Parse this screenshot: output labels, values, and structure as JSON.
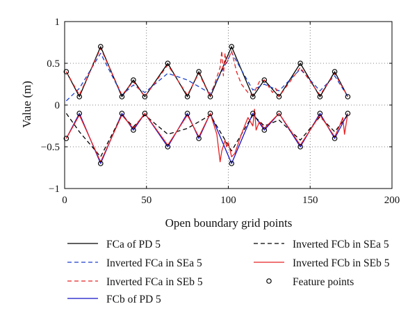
{
  "chart_data": {
    "type": "line",
    "xlabel": "Open boundary grid points",
    "ylabel": "Value (m)",
    "xlim": [
      0,
      200
    ],
    "ylim": [
      -1,
      1
    ],
    "xticks": [
      0,
      50,
      100,
      150,
      200
    ],
    "yticks": [
      -1,
      -0.5,
      0,
      0.5,
      1
    ],
    "xtick_labels": [
      "0",
      "50",
      "100",
      "150",
      "200"
    ],
    "ytick_labels": [
      "−1",
      "−0.5",
      "0",
      "0.5",
      "1"
    ],
    "grid": "dotted, at ticks",
    "legend_placement": "below plot, two columns",
    "series": [
      {
        "name": "FCa of PD 5",
        "color": "#000000",
        "dash": "solid",
        "x": [
          1,
          9,
          22,
          35,
          42,
          49,
          63,
          75,
          82,
          89,
          102,
          115,
          122,
          131,
          144,
          156,
          165,
          173
        ],
        "y": [
          0.4,
          0.1,
          0.7,
          0.1,
          0.3,
          0.1,
          0.5,
          0.1,
          0.4,
          0.1,
          0.7,
          0.1,
          0.3,
          0.1,
          0.5,
          0.1,
          0.4,
          0.1
        ]
      },
      {
        "name": "Inverted FCa in SEa 5",
        "color": "#1a3fcc",
        "dash": "dashed",
        "x": [
          1,
          9,
          22,
          35,
          42,
          49,
          63,
          75,
          82,
          89,
          102,
          115,
          122,
          131,
          144,
          156,
          165,
          173
        ],
        "y": [
          0.05,
          0.2,
          0.62,
          0.12,
          0.24,
          0.15,
          0.38,
          0.3,
          0.22,
          0.14,
          0.63,
          0.18,
          0.25,
          0.17,
          0.43,
          0.17,
          0.35,
          0.1
        ]
      },
      {
        "name": "Inverted FCa in SEb 5",
        "color": "#e82020",
        "dash": "dashed",
        "x": [
          1,
          9,
          22,
          35,
          42,
          49,
          63,
          75,
          82,
          89,
          95,
          96,
          97,
          98,
          99,
          100,
          102,
          105,
          108,
          112,
          115,
          117,
          119,
          122,
          127,
          129,
          131,
          144,
          156,
          165,
          173
        ],
        "y": [
          0.4,
          0.12,
          0.68,
          0.12,
          0.28,
          0.1,
          0.48,
          0.12,
          0.38,
          0.1,
          0.45,
          0.65,
          0.35,
          0.62,
          0.5,
          0.55,
          0.65,
          0.4,
          0.25,
          0.15,
          0.12,
          0.2,
          0.28,
          0.3,
          0.15,
          0.2,
          0.1,
          0.45,
          0.12,
          0.38,
          0.1
        ]
      },
      {
        "name": "FCb of PD 5",
        "color": "#1010c8",
        "dash": "solid",
        "x": [
          1,
          9,
          22,
          35,
          42,
          49,
          63,
          75,
          82,
          89,
          102,
          115,
          122,
          131,
          144,
          156,
          165,
          173
        ],
        "y": [
          -0.4,
          -0.1,
          -0.7,
          -0.1,
          -0.3,
          -0.1,
          -0.5,
          -0.1,
          -0.4,
          -0.1,
          -0.7,
          -0.1,
          -0.3,
          -0.1,
          -0.5,
          -0.1,
          -0.4,
          -0.1
        ]
      },
      {
        "name": "Inverted FCb in SEa 5",
        "color": "#000000",
        "dash": "dashed",
        "x": [
          1,
          9,
          22,
          35,
          42,
          49,
          63,
          75,
          82,
          89,
          102,
          115,
          122,
          131,
          144,
          156,
          165,
          173
        ],
        "y": [
          -0.1,
          -0.32,
          -0.62,
          -0.12,
          -0.26,
          -0.12,
          -0.35,
          -0.28,
          -0.2,
          -0.12,
          -0.55,
          -0.12,
          -0.25,
          -0.18,
          -0.42,
          -0.14,
          -0.32,
          -0.12
        ]
      },
      {
        "name": "Inverted FCb in SEb 5",
        "color": "#e82020",
        "dash": "solid",
        "x": [
          1,
          9,
          22,
          35,
          42,
          49,
          63,
          75,
          82,
          89,
          93,
          95,
          96,
          98,
          99,
          100,
          102,
          104,
          108,
          112,
          115,
          116,
          117,
          119,
          122,
          131,
          144,
          156,
          165,
          168,
          170,
          171,
          173
        ],
        "y": [
          -0.4,
          -0.12,
          -0.68,
          -0.12,
          -0.28,
          -0.1,
          -0.48,
          -0.12,
          -0.38,
          -0.1,
          -0.35,
          -0.68,
          -0.55,
          -0.42,
          -0.5,
          -0.45,
          -0.62,
          -0.58,
          -0.35,
          -0.15,
          -0.25,
          -0.05,
          -0.3,
          -0.2,
          -0.28,
          -0.1,
          -0.48,
          -0.12,
          -0.38,
          -0.25,
          -0.15,
          -0.35,
          -0.1
        ]
      },
      {
        "name": "Feature points",
        "color": "#000000",
        "marker": "circle",
        "x": [
          1,
          9,
          22,
          35,
          42,
          49,
          63,
          75,
          82,
          89,
          102,
          115,
          122,
          131,
          144,
          156,
          165,
          173,
          1,
          9,
          22,
          35,
          42,
          49,
          63,
          75,
          82,
          89,
          102,
          115,
          122,
          131,
          144,
          156,
          165,
          173
        ],
        "y": [
          0.4,
          0.1,
          0.7,
          0.1,
          0.3,
          0.1,
          0.5,
          0.1,
          0.4,
          0.1,
          0.7,
          0.1,
          0.3,
          0.1,
          0.5,
          0.1,
          0.4,
          0.1,
          -0.4,
          -0.1,
          -0.7,
          -0.1,
          -0.3,
          -0.1,
          -0.5,
          -0.1,
          -0.4,
          -0.1,
          -0.7,
          -0.1,
          -0.3,
          -0.1,
          -0.5,
          -0.1,
          -0.4,
          -0.1
        ]
      }
    ]
  }
}
